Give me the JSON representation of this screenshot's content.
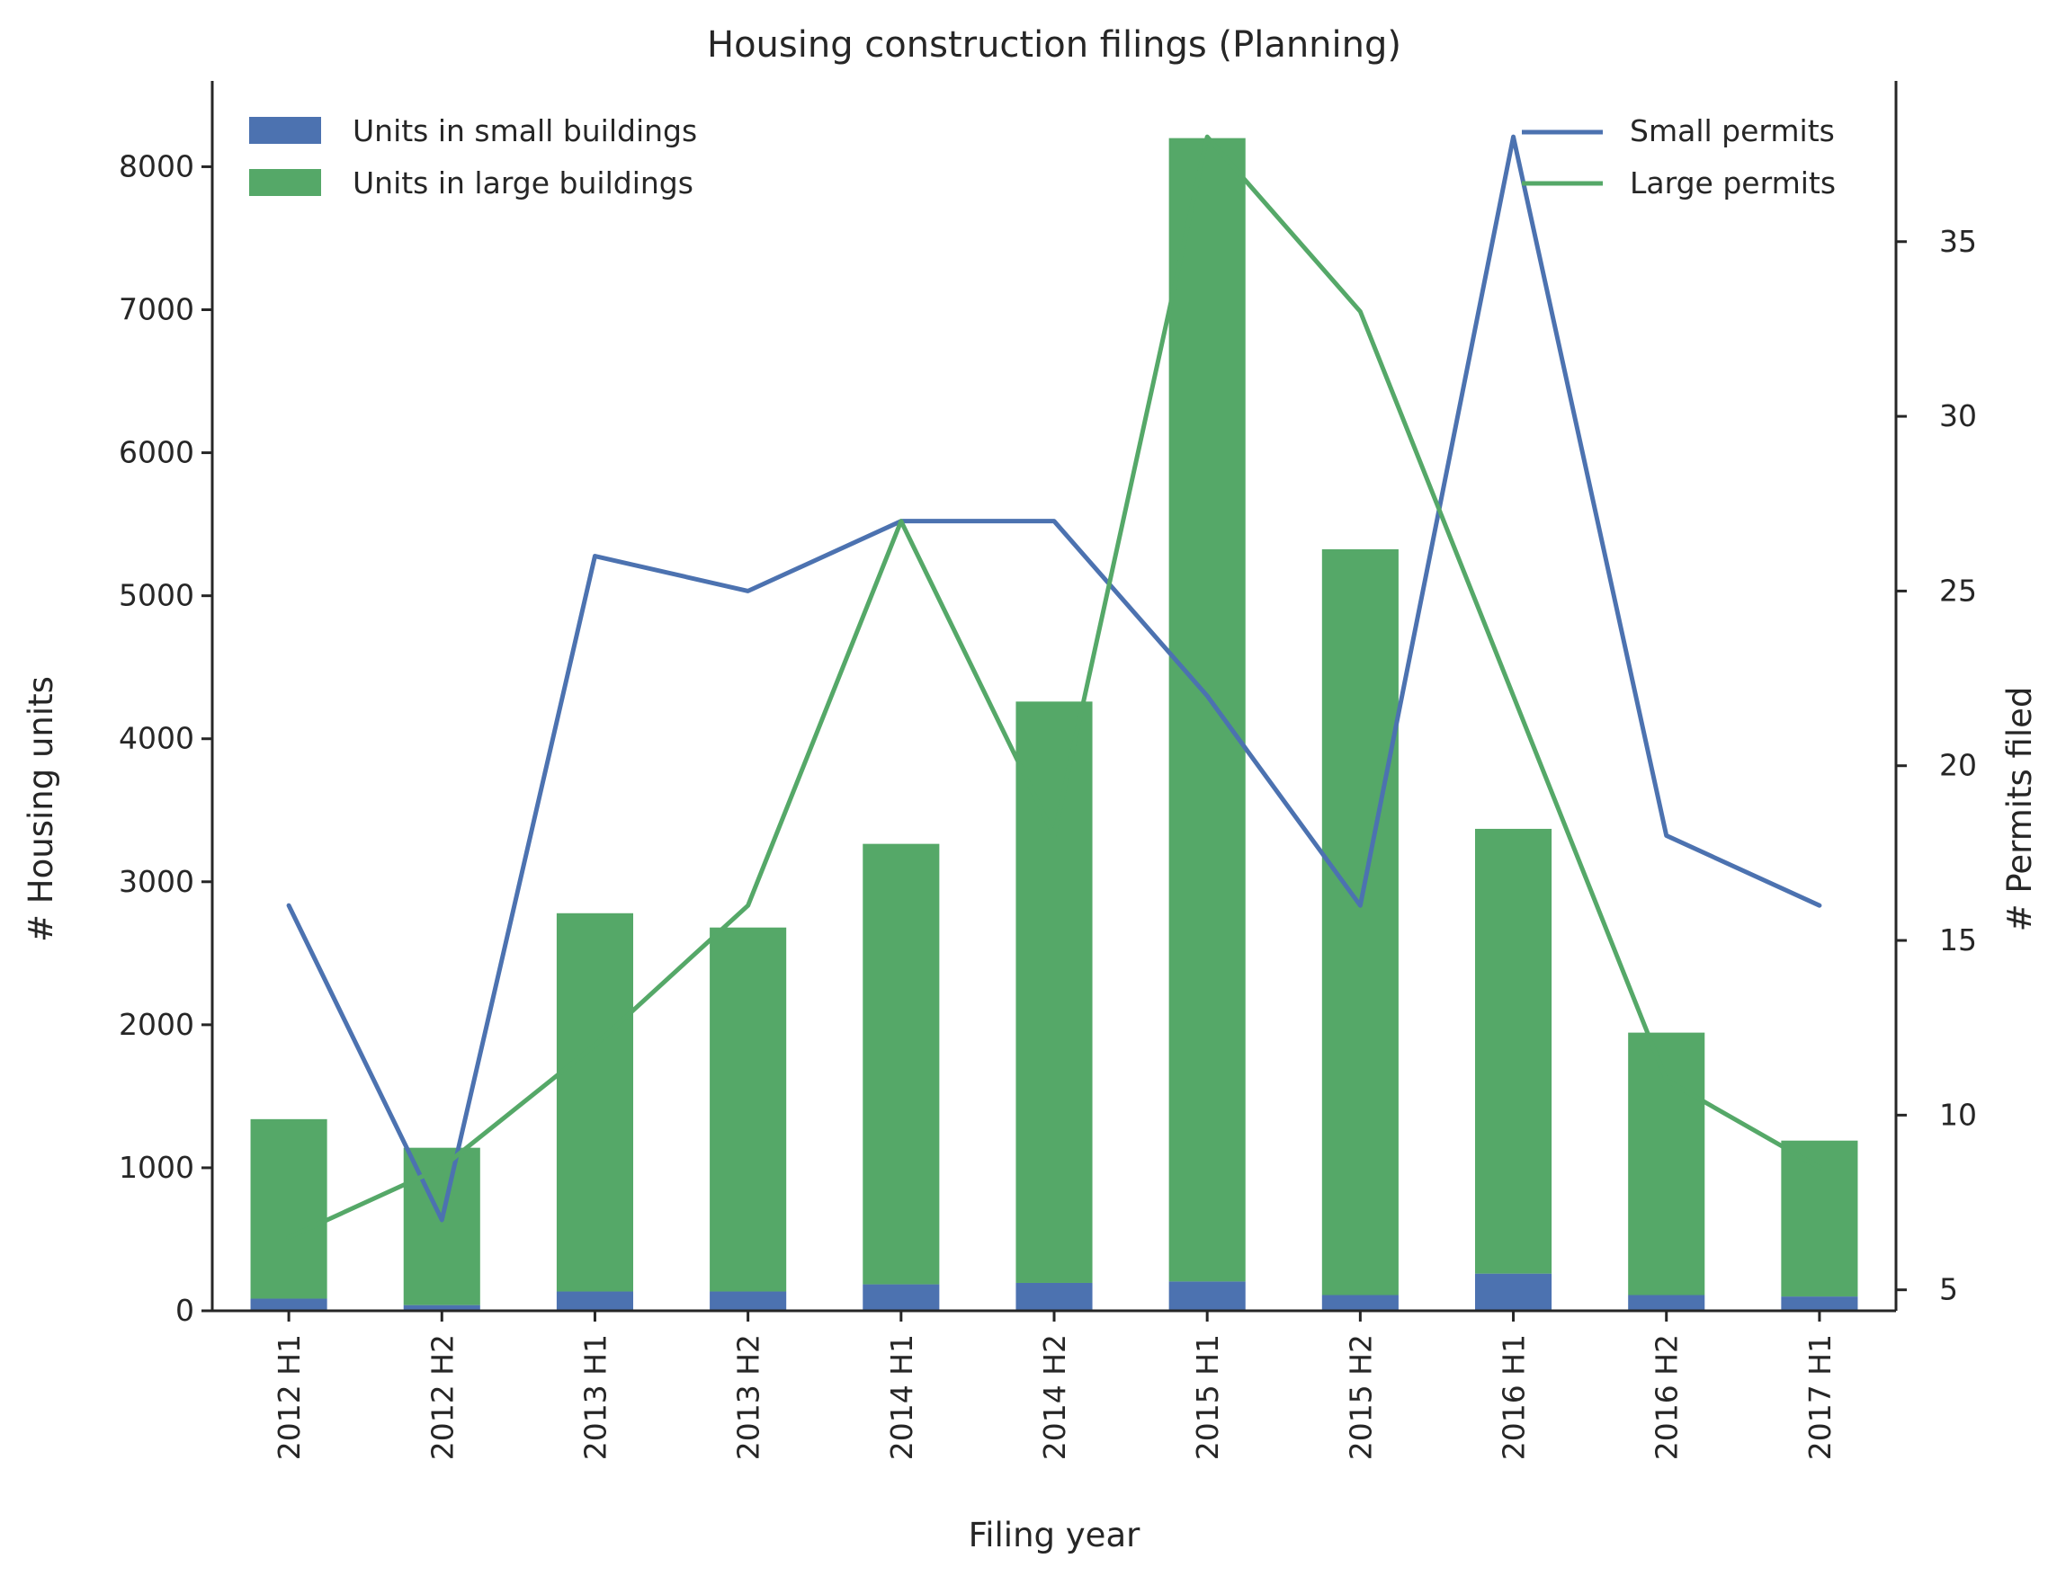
{
  "chart_data": {
    "type": "bar",
    "title": "Housing construction filings (Planning)",
    "xlabel": "Filing year",
    "ylabel": "# Housing units",
    "y2label": "# Permits filed",
    "categories": [
      "2012 H1",
      "2012 H2",
      "2013 H1",
      "2013 H2",
      "2014 H1",
      "2014 H2",
      "2015 H1",
      "2015 H2",
      "2016 H1",
      "2016 H2",
      "2017 H1"
    ],
    "ylim": [
      0,
      8600
    ],
    "y2lim": [
      4.4,
      39.6
    ],
    "yticks": [
      "0",
      "1000",
      "2000",
      "3000",
      "4000",
      "5000",
      "6000",
      "7000",
      "8000"
    ],
    "y2ticks": [
      "5",
      "10",
      "15",
      "20",
      "25",
      "30",
      "35"
    ],
    "grid": false,
    "bar_series": [
      {
        "name": "Units in small buildings",
        "color": "#4c72b0",
        "values": [
          85,
          40,
          135,
          135,
          185,
          195,
          205,
          110,
          260,
          110,
          100
        ]
      },
      {
        "name": "Units in large buildings",
        "color": "#55a868",
        "values": [
          1255,
          1100,
          2645,
          2545,
          3080,
          4065,
          7995,
          5215,
          3110,
          1835,
          1090
        ]
      }
    ],
    "line_series": [
      {
        "name": "Small permits",
        "color": "#4c72b0",
        "values": [
          16,
          7,
          26,
          25,
          27,
          27,
          22,
          16,
          38,
          18,
          16
        ]
      },
      {
        "name": "Large permits",
        "color": "#55a868",
        "values": [
          6.5,
          8.5,
          12,
          16,
          27,
          18,
          38,
          33,
          22,
          11,
          8.5
        ]
      }
    ],
    "legend_bars_position": "top-left",
    "legend_lines_position": "top-right"
  }
}
